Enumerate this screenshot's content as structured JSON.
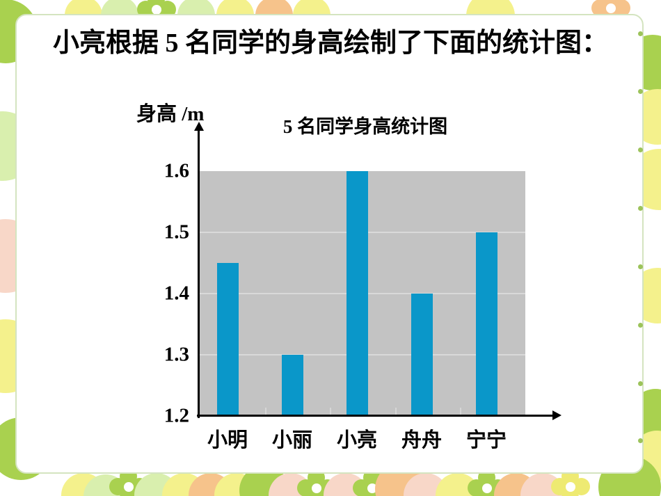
{
  "slide": {
    "title": "小亮根据 5 名同学的身高绘制了下面的统计图："
  },
  "chart_data": {
    "type": "bar",
    "title": "5 名同学身高统计图",
    "ylabel": "身高 /m",
    "xlabel": "",
    "categories": [
      "小明",
      "小丽",
      "小亮",
      "舟舟",
      "宁宁"
    ],
    "values": [
      1.45,
      1.3,
      1.6,
      1.4,
      1.5
    ],
    "ylim": [
      1.2,
      1.6
    ],
    "yticks": [
      1.2,
      1.3,
      1.4,
      1.5,
      1.6
    ],
    "grid": true,
    "legend": false
  },
  "colors": {
    "bar": "#0a97c9",
    "plot_background": "#c3c3c3",
    "grid_line": "#d9d9d9",
    "axis": "#000000",
    "text": "#000000"
  }
}
